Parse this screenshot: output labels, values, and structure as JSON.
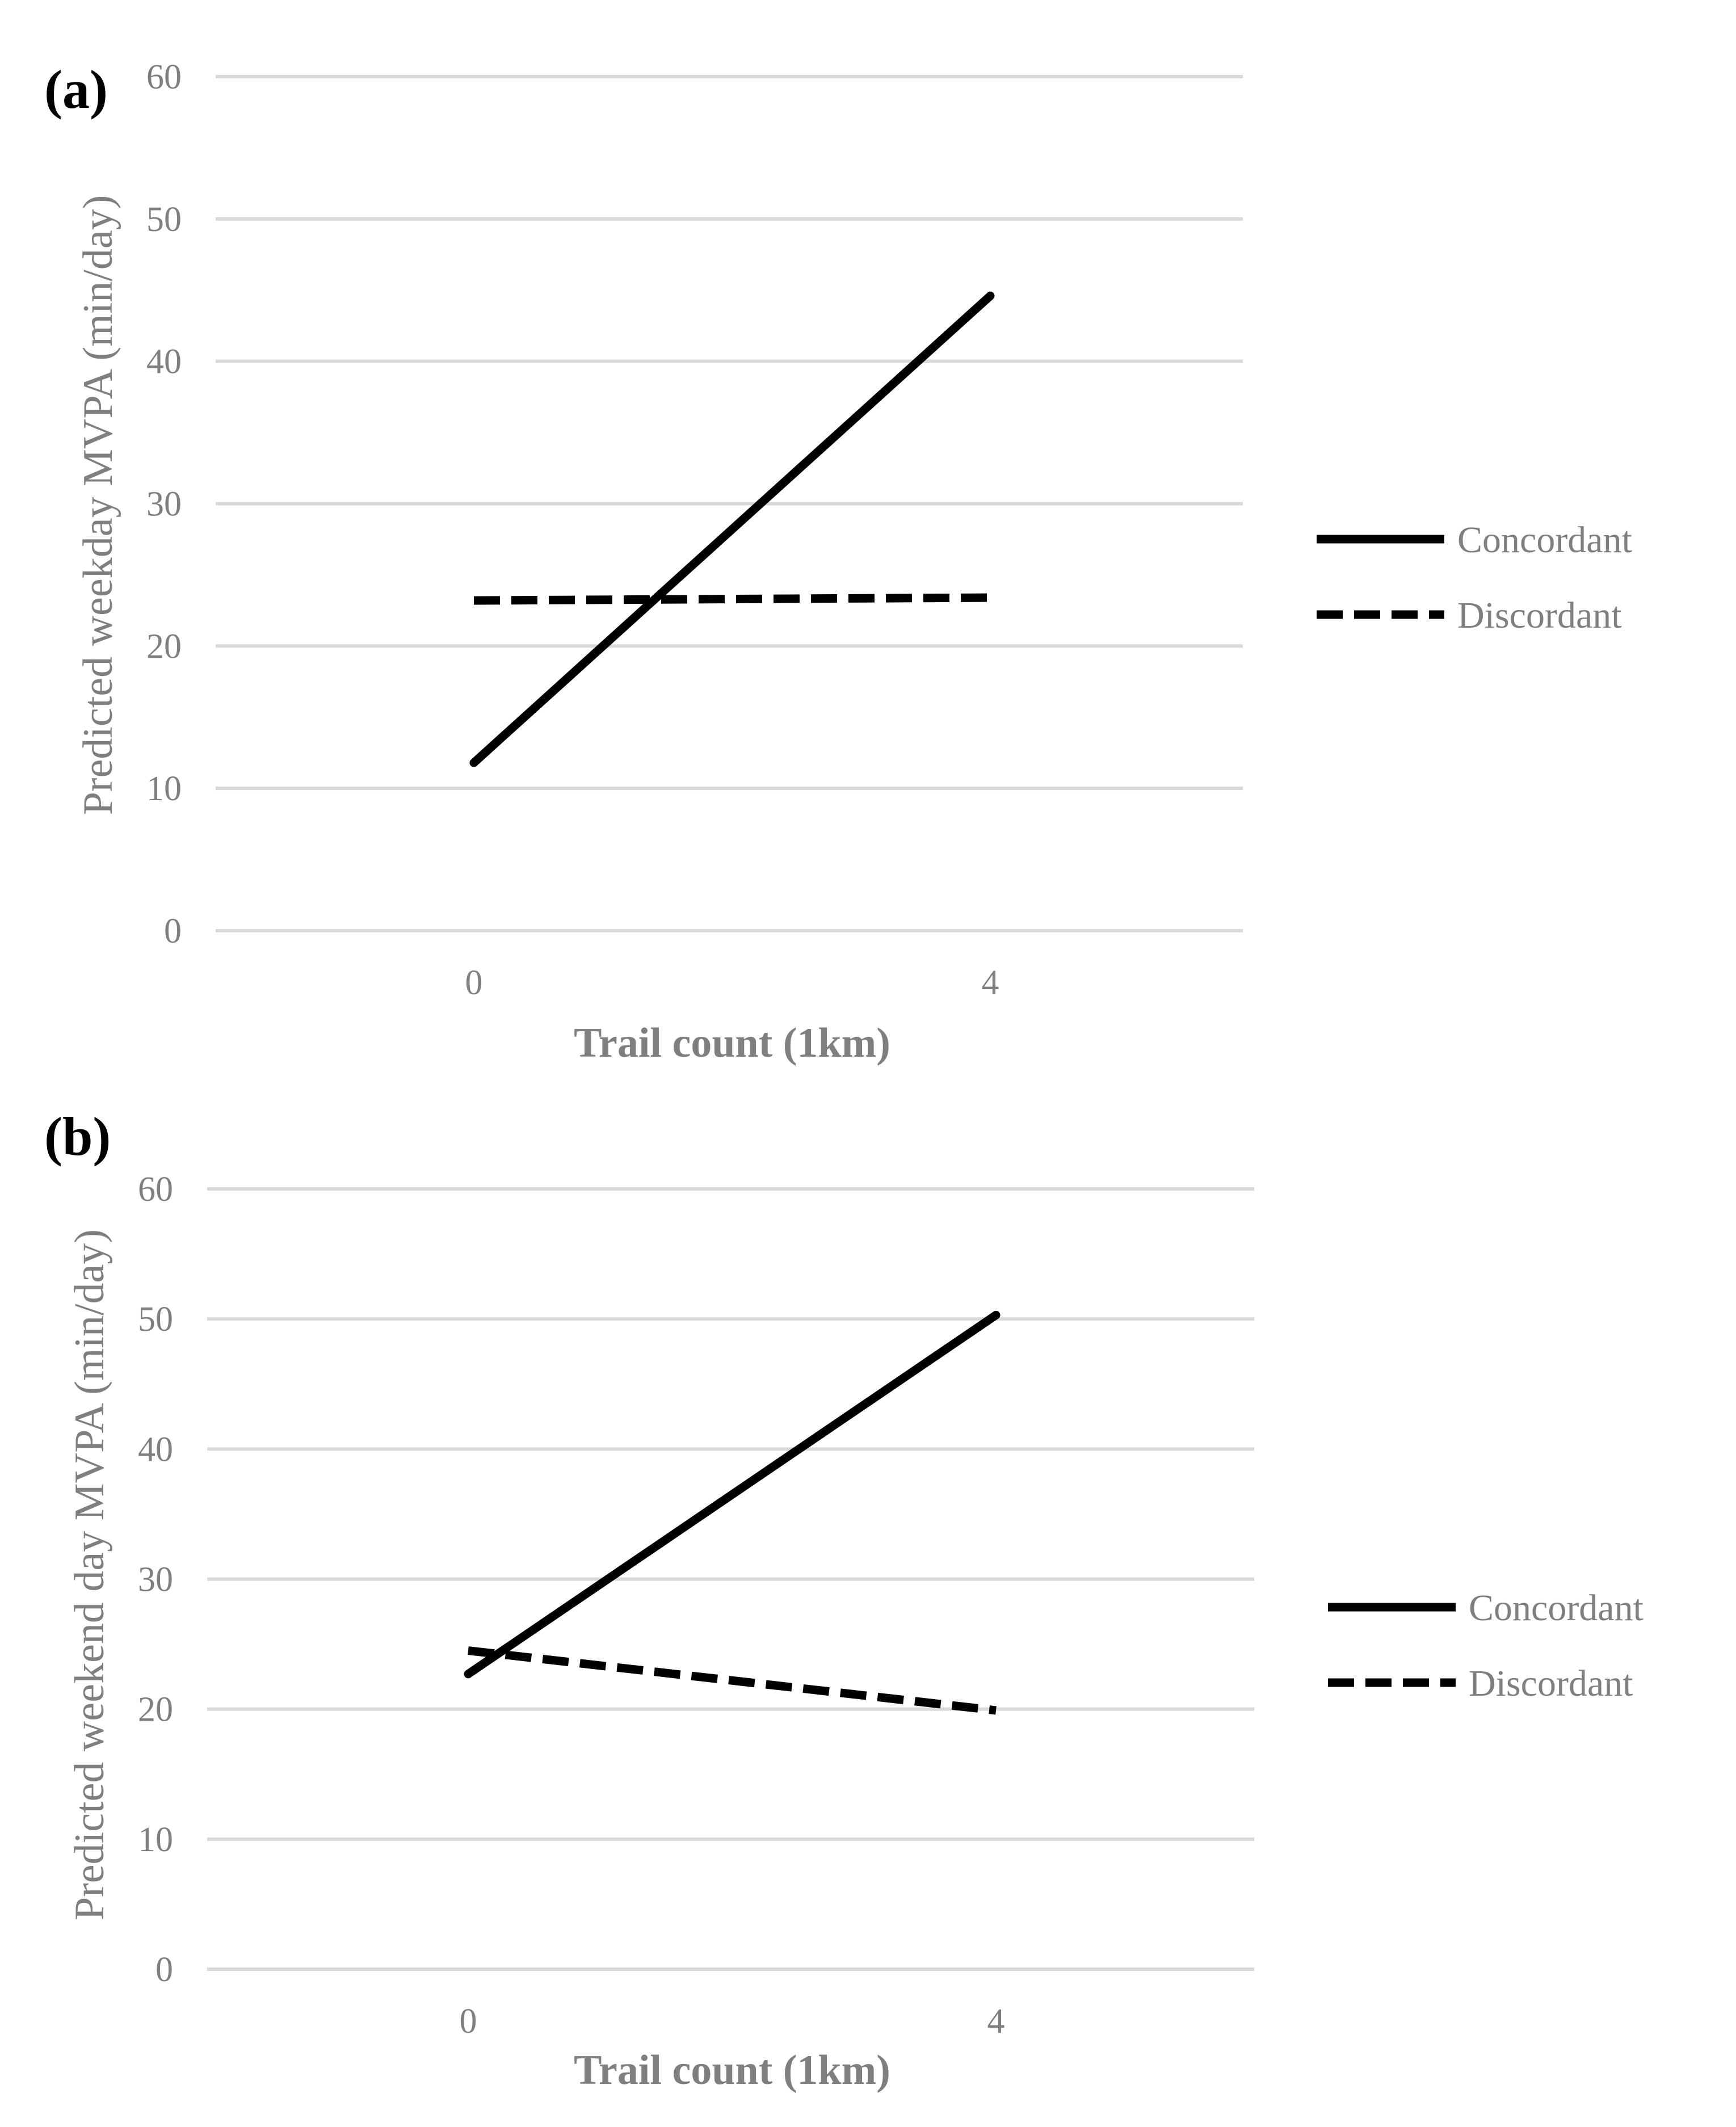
{
  "chart_data": [
    {
      "panel_label": "(a)",
      "type": "line",
      "title": "",
      "xlabel": "Trail count (1km)",
      "ylabel": "Predicted weekday MVPA (min/day)",
      "categories": [
        "0",
        "4"
      ],
      "ylim": [
        0,
        60
      ],
      "yticks": [
        "0",
        "10",
        "20",
        "30",
        "40",
        "50",
        "60"
      ],
      "grid": true,
      "legend_position": "right",
      "series": [
        {
          "name": "Concordant",
          "style": "solid",
          "color": "#000000",
          "values": [
            11.8,
            44.6
          ]
        },
        {
          "name": "Discordant",
          "style": "dashed",
          "color": "#000000",
          "values": [
            23.2,
            23.4
          ]
        }
      ]
    },
    {
      "panel_label": "(b)",
      "type": "line",
      "title": "",
      "xlabel": "Trail count (1km)",
      "ylabel": "Predicted weekend day MVPA (min/day)",
      "categories": [
        "0",
        "4"
      ],
      "ylim": [
        0,
        60
      ],
      "yticks": [
        "0",
        "10",
        "20",
        "30",
        "40",
        "50",
        "60"
      ],
      "grid": true,
      "legend_position": "right",
      "series": [
        {
          "name": "Concordant",
          "style": "solid",
          "color": "#000000",
          "values": [
            22.7,
            50.3
          ]
        },
        {
          "name": "Discordant",
          "style": "dashed",
          "color": "#000000",
          "values": [
            24.5,
            19.9
          ]
        }
      ]
    }
  ]
}
